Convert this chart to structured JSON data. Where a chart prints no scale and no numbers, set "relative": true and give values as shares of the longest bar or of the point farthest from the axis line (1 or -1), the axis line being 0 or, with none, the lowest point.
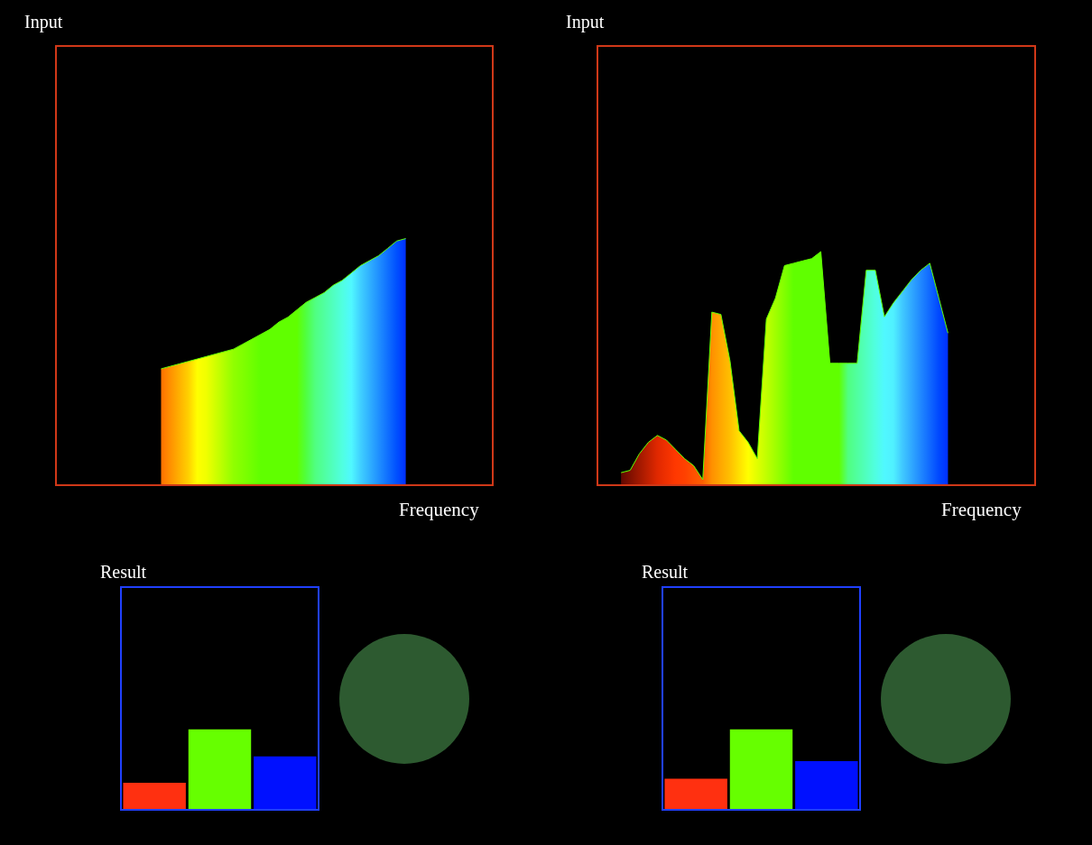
{
  "chart_data": [
    {
      "type": "area",
      "title": "Input",
      "xlabel": "Frequency",
      "relative": true,
      "color": "#60ff00",
      "categories": [
        null,
        null,
        null,
        null,
        null,
        null,
        null,
        null,
        null,
        null,
        null,
        null,
        null,
        null,
        null,
        null,
        null,
        null,
        null,
        null,
        null,
        null,
        null,
        null,
        null,
        null,
        null,
        null,
        null,
        null,
        null,
        null,
        null,
        null,
        null,
        null,
        null,
        null,
        null,
        null,
        null,
        null,
        null,
        null,
        null,
        null,
        null,
        null
      ],
      "values": [
        null,
        null,
        null,
        null,
        null,
        null,
        null,
        null,
        null,
        null,
        null,
        0.47,
        0.48,
        0.49,
        0.5,
        0.51,
        0.52,
        0.53,
        0.54,
        0.55,
        0.57,
        0.59,
        0.61,
        0.63,
        0.66,
        0.68,
        0.71,
        0.74,
        0.76,
        0.78,
        0.81,
        0.83,
        0.86,
        0.89,
        0.91,
        0.93,
        0.96,
        0.99,
        1.0,
        null,
        null,
        null,
        null,
        null,
        null,
        null,
        null,
        null
      ],
      "colors": [
        "#000000",
        "#000000",
        "#000000",
        "#000000",
        "#000000",
        "#000000",
        "#000000",
        "#000000",
        "#000000",
        "#000000",
        "#000000",
        "#ff7000",
        "#ff9000",
        "#ffb000",
        "#ffd000",
        "#ffff00",
        "#f0ff00",
        "#d0ff00",
        "#b0ff00",
        "#90ff00",
        "#80ff00",
        "#70ff00",
        "#60ff00",
        "#60ff00",
        "#60ff00",
        "#60ff00",
        "#60ff00",
        "#50ff40",
        "#50ff80",
        "#50ffa0",
        "#50ffc0",
        "#50ffe0",
        "#50f8ff",
        "#40d0ff",
        "#30b0ff",
        "#2090ff",
        "#1070ff",
        "#0050ff",
        "#0030ff",
        "#000000",
        "#000000",
        "#000000",
        "#000000",
        "#000000",
        "#000000",
        "#000000",
        "#000000",
        "#000000"
      ]
    },
    {
      "type": "area",
      "title": "Input",
      "xlabel": "Frequency",
      "relative": true,
      "color": "#60ff00",
      "categories": [
        null,
        null,
        null,
        null,
        null,
        null,
        null,
        null,
        null,
        null,
        null,
        null,
        null,
        null,
        null,
        null,
        null,
        null,
        null,
        null,
        null,
        null,
        null,
        null,
        null,
        null,
        null,
        null,
        null,
        null,
        null,
        null,
        null,
        null,
        null,
        null,
        null,
        null,
        null,
        null,
        null,
        null,
        null,
        null,
        null,
        null,
        null,
        null
      ],
      "values": [
        null,
        null,
        0.05,
        0.06,
        0.13,
        0.18,
        0.21,
        0.19,
        0.15,
        0.11,
        0.08,
        0.02,
        0.74,
        0.73,
        0.53,
        0.23,
        0.18,
        0.11,
        0.71,
        0.8,
        0.94,
        0.95,
        0.96,
        0.97,
        1.0,
        0.52,
        0.52,
        0.52,
        0.52,
        0.92,
        0.92,
        0.72,
        0.78,
        0.83,
        0.88,
        0.92,
        0.95,
        0.8,
        0.65,
        null,
        null,
        null,
        null,
        null,
        null,
        null,
        null,
        null
      ],
      "colors": [
        "#000000",
        "#000000",
        "#600800",
        "#801000",
        "#a01800",
        "#c02000",
        "#e02800",
        "#f03000",
        "#ff3800",
        "#ff4000",
        "#ff5000",
        "#ff6000",
        "#ff9000",
        "#ffa800",
        "#ffc000",
        "#ffe000",
        "#ffff00",
        "#e0ff00",
        "#c0ff00",
        "#a0ff00",
        "#80ff00",
        "#60ff00",
        "#60ff00",
        "#60ff00",
        "#60ff00",
        "#60ff00",
        "#60ff00",
        "#50ff80",
        "#50ffa0",
        "#50ffc0",
        "#50ffe0",
        "#50f8ff",
        "#50f0ff",
        "#40c8ff",
        "#30a8ff",
        "#2088ff",
        "#1068ff",
        "#0048ff",
        "#0030ff",
        "#000000",
        "#000000",
        "#000000",
        "#000000",
        "#000000",
        "#000000",
        "#000000",
        "#000000",
        "#000000"
      ]
    },
    {
      "type": "bar",
      "title": "Result",
      "relative": true,
      "categories": [
        null,
        null,
        null
      ],
      "values": [
        0.33,
        1.0,
        0.66
      ],
      "colors": [
        "#ff3010",
        "#66ff00",
        "#0010ff"
      ]
    },
    {
      "type": "bar",
      "title": "Result",
      "relative": true,
      "categories": [
        null,
        null,
        null
      ],
      "values": [
        0.38,
        1.0,
        0.6
      ],
      "colors": [
        "#ff3010",
        "#66ff00",
        "#0010ff"
      ]
    }
  ]
}
